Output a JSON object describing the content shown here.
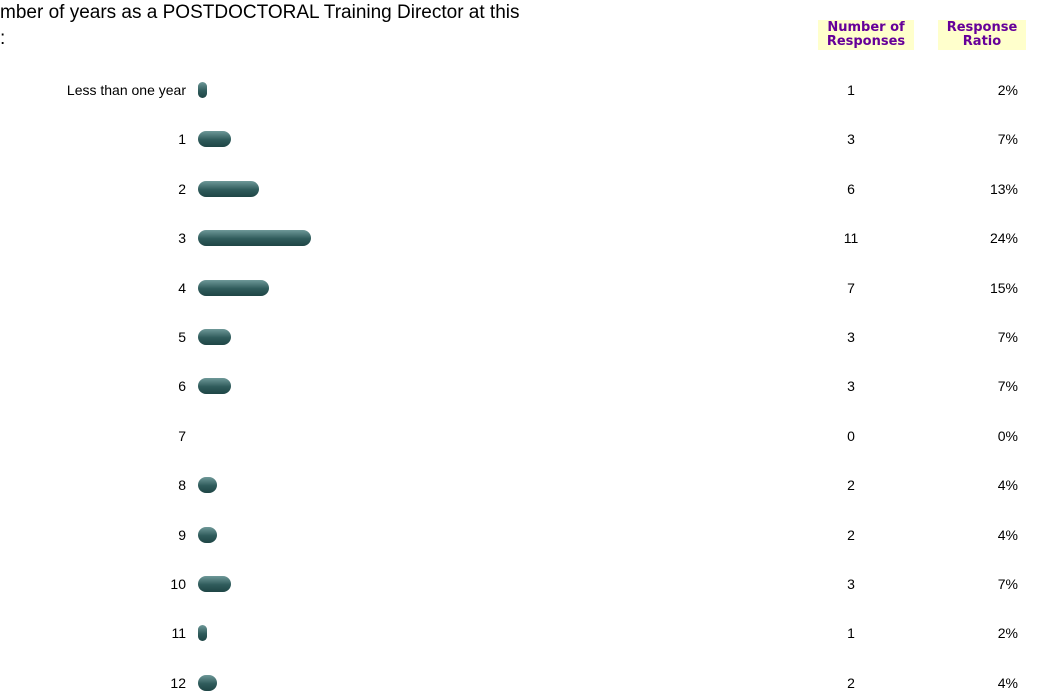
{
  "chart_data": {
    "type": "bar",
    "title": [
      "mber of years as a POSTDOCTORAL Training Director at this",
      ":"
    ],
    "column_headers": [
      [
        "Number of",
        "Responses"
      ],
      [
        "Response",
        "Ratio"
      ]
    ],
    "categories": [
      "Less than one year",
      "1",
      "2",
      "3",
      "4",
      "5",
      "6",
      "7",
      "8",
      "9",
      "10",
      "11",
      "12"
    ],
    "responses": [
      1,
      3,
      6,
      11,
      7,
      3,
      3,
      0,
      2,
      2,
      3,
      1,
      2
    ],
    "values": [
      2,
      7,
      13,
      24,
      15,
      7,
      7,
      0,
      4,
      4,
      7,
      2,
      4
    ],
    "value_labels": [
      "2%",
      "7%",
      "13%",
      "24%",
      "15%",
      "7%",
      "7%",
      "0%",
      "4%",
      "4%",
      "7%",
      "2%",
      "4%"
    ]
  }
}
